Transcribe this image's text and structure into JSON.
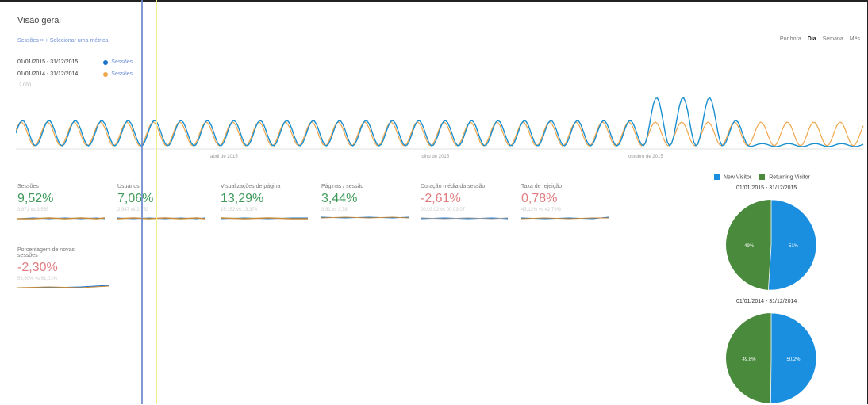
{
  "page_title": "Visão geral",
  "breadcrumb": "Sessões  ×  +  Selecionar uma métrica",
  "range_tabs": [
    "Por hora",
    "Dia",
    "Semana",
    "Mês"
  ],
  "legend": {
    "range_a": "01/01/2015 - 31/12/2015",
    "range_b": "01/01/2014 - 31/12/2014",
    "metric_a": "Sessões",
    "metric_b": "Sessões",
    "color_a": "#1a73c9",
    "color_b": "#f0a64b"
  },
  "chart": {
    "y_max_label": "2.000",
    "x_labels": [
      "abril de 2015",
      "julho de 2015",
      "outubro de 2015"
    ]
  },
  "metrics": [
    {
      "label": "Sessões",
      "value": "9,52%",
      "trend": "positive",
      "sub": "3.871 vs 3.535"
    },
    {
      "label": "Usuários",
      "value": "7,06%",
      "trend": "positive",
      "sub": "2.947 vs 2.753"
    },
    {
      "label": "Visualizações de página",
      "value": "13,29%",
      "trend": "positive",
      "sub": "15.152 vs 13.374"
    },
    {
      "label": "Páginas / sessão",
      "value": "3,44%",
      "trend": "positive",
      "sub": "3,91 vs 3,78"
    },
    {
      "label": "Duração média da sessão",
      "value": "-2,61%",
      "trend": "negative",
      "sub": "00:03:02 vs 00:03:07"
    },
    {
      "label": "Taxa de rejeição",
      "value": "0,78%",
      "trend": "negative",
      "sub": "43,12% vs 42,79%"
    },
    {
      "label": "Porcentagem de novas sessões",
      "value": "-2,30%",
      "trend": "negative",
      "sub": "59,60% vs 61,01%"
    }
  ],
  "pie_legend": {
    "new_label": "New Visitor",
    "returning_label": "Returning Visitor",
    "new_color": "#1a8fe0",
    "returning_color": "#4a8a3c"
  },
  "pies": [
    {
      "date": "01/01/2015 - 31/12/2015",
      "new_label": "51%",
      "returning_label": "49%",
      "new_fraction": 0.51
    },
    {
      "date": "01/01/2014 - 31/12/2014",
      "new_label": "50,2%",
      "returning_label": "49,8%",
      "new_fraction": 0.502
    }
  ]
}
